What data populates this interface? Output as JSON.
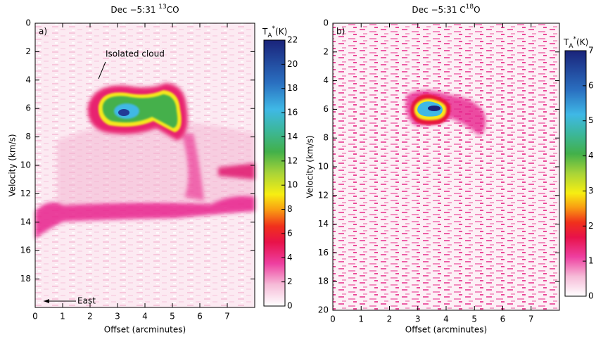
{
  "chart_data": [
    {
      "type": "heatmap",
      "panel": "a)",
      "title": [
        "Dec −5:31 ",
        "13",
        "CO"
      ],
      "xlabel": "Offset (arcminutes)",
      "ylabel": "Velocity (km/s)",
      "xlim": [
        0,
        8
      ],
      "xticks": [
        0,
        1,
        2,
        3,
        4,
        5,
        6,
        7
      ],
      "ylim": [
        0,
        20
      ],
      "yticks": [
        0,
        2,
        4,
        6,
        8,
        10,
        12,
        14,
        16,
        18
      ],
      "y_inverted": true,
      "colorbar_label": [
        "T",
        "A",
        "*",
        "(K)"
      ],
      "clim": [
        0,
        22
      ],
      "cticks": [
        0,
        2,
        4,
        6,
        8,
        10,
        12,
        14,
        16,
        18,
        20,
        22
      ],
      "annotations": [
        "Isolated cloud",
        "East"
      ]
    },
    {
      "type": "heatmap",
      "panel": "b)",
      "title": [
        "Dec −5:31 C",
        "18",
        "O"
      ],
      "xlabel": "Offset (arcminutes)",
      "ylabel": "Velocity (km/s)",
      "xlim": [
        0,
        8
      ],
      "xticks": [
        0,
        1,
        2,
        3,
        4,
        5,
        6,
        7
      ],
      "ylim": [
        0,
        20
      ],
      "yticks": [
        0,
        2,
        4,
        6,
        8,
        10,
        12,
        14,
        16,
        18,
        20
      ],
      "y_inverted": true,
      "colorbar_label": [
        "T",
        "A",
        "*",
        "(K)"
      ],
      "clim": [
        0,
        7
      ],
      "cticks": [
        0,
        1,
        2,
        3,
        4,
        5,
        6,
        7
      ]
    }
  ]
}
